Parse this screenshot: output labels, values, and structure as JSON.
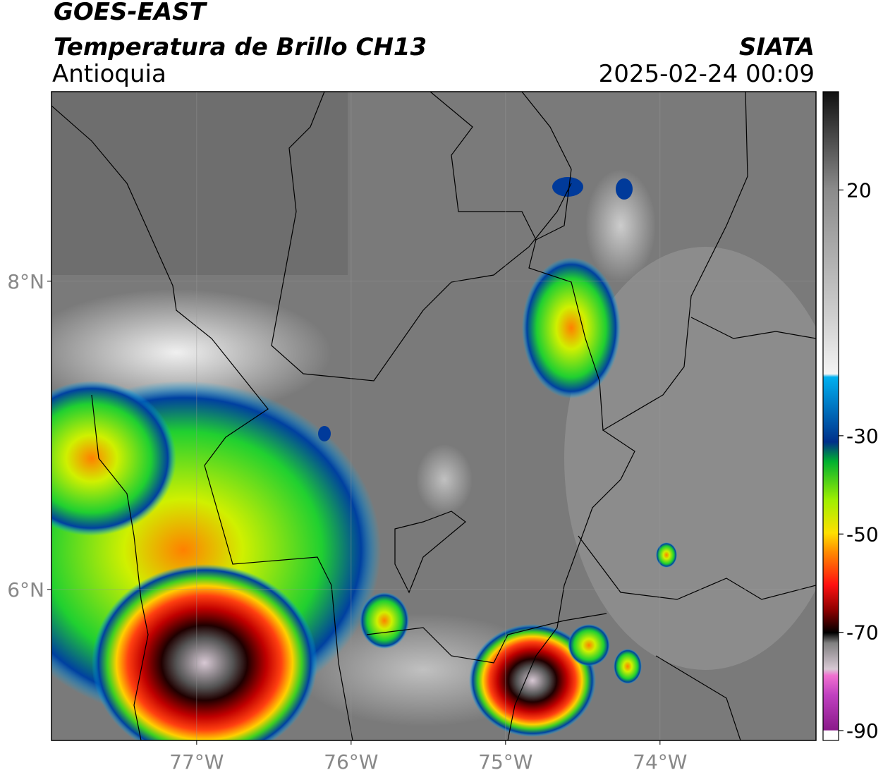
{
  "header": {
    "satellite": "GOES-EAST",
    "product": "Temperatura de Brillo CH13",
    "region": "Antioquia",
    "source": "SIATA",
    "datetime": "2025-02-24 00:09"
  },
  "map": {
    "lon_lim": [
      -77.94,
      -72.99
    ],
    "lat_lim": [
      5.02,
      9.23
    ],
    "lon_ticks": [
      {
        "value": -77,
        "label": "77°W"
      },
      {
        "value": -76,
        "label": "76°W"
      },
      {
        "value": -75,
        "label": "75°W"
      },
      {
        "value": -74,
        "label": "74°W"
      }
    ],
    "lat_ticks": [
      {
        "value": 8,
        "label": "8°N"
      },
      {
        "value": 6,
        "label": "6°N"
      }
    ]
  },
  "colorbar": {
    "lim": [
      -92,
      40
    ],
    "ticks": [
      20,
      -30,
      -50,
      -70,
      -90
    ]
  }
}
